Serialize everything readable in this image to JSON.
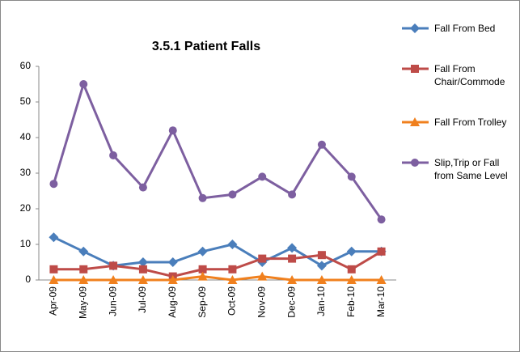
{
  "chart_data": {
    "type": "line",
    "title": "3.5.1 Patient Falls",
    "categories": [
      "Apr-09",
      "May-09",
      "Jun-09",
      "Jul-09",
      "Aug-09",
      "Sep-09",
      "Oct-09",
      "Nov-09",
      "Dec-09",
      "Jan-10",
      "Feb-10",
      "Mar-10"
    ],
    "series": [
      {
        "name": "Fall From Bed",
        "color": "#4a7ebb",
        "marker": "diamond",
        "values": [
          12,
          8,
          4,
          5,
          5,
          8,
          10,
          5,
          9,
          4,
          8,
          8
        ]
      },
      {
        "name": "Fall From Chair/Commode",
        "color": "#be4b48",
        "marker": "square",
        "values": [
          3,
          3,
          4,
          3,
          1,
          3,
          3,
          6,
          6,
          7,
          3,
          8
        ]
      },
      {
        "name": "Fall From Trolley",
        "color": "#f0801e",
        "marker": "triangle",
        "values": [
          0,
          0,
          0,
          0,
          0,
          1,
          0,
          1,
          0,
          0,
          0,
          0
        ]
      },
      {
        "name": "Slip,Trip or Fall from Same Level",
        "color": "#7d5fa0",
        "marker": "circle",
        "values": [
          27,
          55,
          35,
          26,
          42,
          23,
          24,
          29,
          24,
          38,
          29,
          17
        ]
      }
    ],
    "ylim": [
      0,
      60
    ],
    "yticks": [
      0,
      10,
      20,
      30,
      40,
      50,
      60
    ],
    "grid": false,
    "legend": "right"
  }
}
